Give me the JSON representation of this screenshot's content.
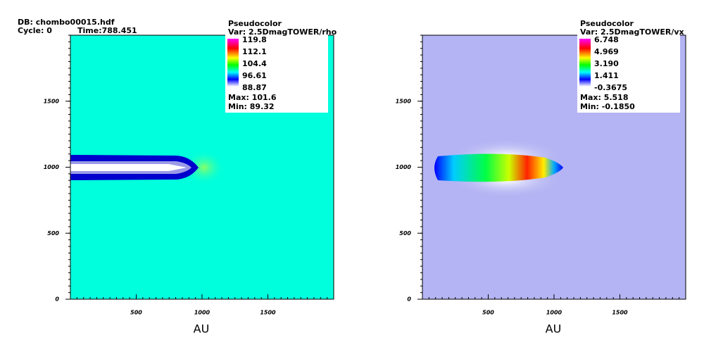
{
  "header": {
    "db": "DB: chombo00015.hdf",
    "cycle": "Cycle: 0",
    "time": "Time:788.451"
  },
  "panels": [
    {
      "legend": {
        "title": "Pseudocolor",
        "var": "Var: 2.5DmagTOWER/rho",
        "levels": [
          "119.8",
          "112.1",
          "104.4",
          "96.61",
          "88.87"
        ],
        "max": "Max:  101.6",
        "min": "Min:  89.32"
      },
      "xlim": [
        0,
        2000
      ],
      "ylim": [
        0,
        2000
      ],
      "xticks": [
        500,
        1000,
        1500
      ],
      "yticks": [
        0,
        500,
        1000,
        1500
      ],
      "xlabel": "AU"
    },
    {
      "legend": {
        "title": "Pseudocolor",
        "var": "Var: 2.5DmagTOWER/vx",
        "levels": [
          "6.748",
          "4.969",
          "3.190",
          "1.411",
          "-0.3675"
        ],
        "max": "Max:  5.518",
        "min": "Min: -0.1850"
      },
      "xlim": [
        0,
        2000
      ],
      "ylim": [
        0,
        2000
      ],
      "xticks": [
        500,
        1000,
        1500
      ],
      "yticks": [
        0,
        500,
        1000,
        1500
      ],
      "xlabel": "AU"
    }
  ]
}
